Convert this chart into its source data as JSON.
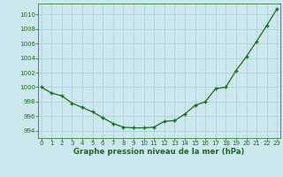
{
  "x": [
    0,
    1,
    2,
    3,
    4,
    5,
    6,
    7,
    8,
    9,
    10,
    11,
    12,
    13,
    14,
    15,
    16,
    17,
    18,
    19,
    20,
    21,
    22,
    23
  ],
  "y": [
    1000.0,
    999.2,
    998.8,
    997.8,
    997.2,
    996.6,
    995.8,
    995.0,
    994.5,
    994.4,
    994.4,
    994.5,
    995.3,
    995.4,
    996.3,
    997.5,
    998.0,
    999.8,
    1000.0,
    1002.3,
    1004.2,
    1006.3,
    1008.5,
    1010.8
  ],
  "line_color": "#1a6b1a",
  "marker_color": "#1a6b1a",
  "bg_color": "#cce8ee",
  "grid_color": "#aaccd8",
  "text_color": "#1a6b1a",
  "title": "Graphe pression niveau de la mer (hPa)",
  "ylim": [
    993.0,
    1011.5
  ],
  "xlim": [
    -0.3,
    23.3
  ],
  "yticks": [
    994,
    996,
    998,
    1000,
    1002,
    1004,
    1006,
    1008,
    1010
  ],
  "xticks": [
    0,
    1,
    2,
    3,
    4,
    5,
    6,
    7,
    8,
    9,
    10,
    11,
    12,
    13,
    14,
    15,
    16,
    17,
    18,
    19,
    20,
    21,
    22,
    23
  ],
  "tick_fontsize": 5.0,
  "title_fontsize": 6.2,
  "line_width": 0.9,
  "marker_size": 3.5,
  "marker_ew": 1.0
}
